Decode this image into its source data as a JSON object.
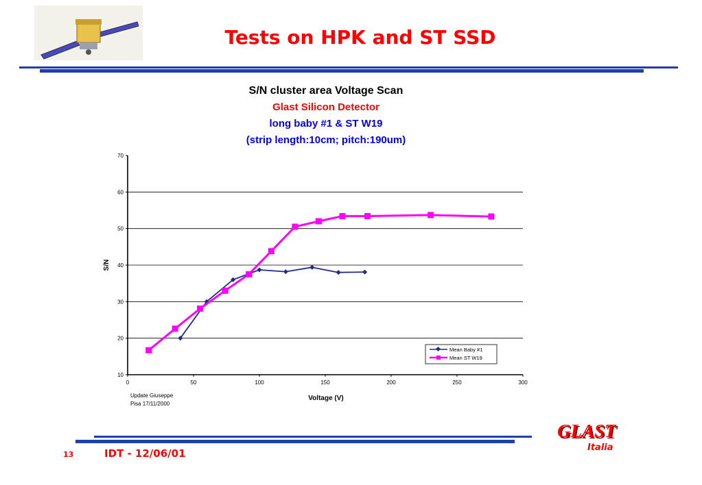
{
  "slide": {
    "title": "Tests on HPK and ST SSD",
    "page_number": "13",
    "footer": "IDT - 12/06/01",
    "logo_name": "GLAST",
    "logo_sub": "Italia"
  },
  "colors": {
    "title": "#ff0000",
    "rule": "#1f3fb0",
    "series_baby": "#1f2a8a",
    "series_st": "#ff00ff",
    "chart_title_red": "#ff0000",
    "chart_title_blue": "#0000ee"
  },
  "chart_data": {
    "type": "line",
    "title": "S/N cluster area Voltage Scan",
    "subtitle_lines": [
      "Glast Silicon Detector",
      "long baby #1  &  ST W19",
      "(strip length:10cm; pitch:190um)"
    ],
    "xlabel": "Voltage (V)",
    "ylabel": "S/N",
    "xlim": [
      0,
      300
    ],
    "ylim": [
      10,
      70
    ],
    "xticks": [
      0,
      50,
      100,
      150,
      200,
      250,
      300
    ],
    "yticks": [
      10,
      20,
      30,
      40,
      50,
      60,
      70
    ],
    "grid": "horizontal",
    "legend_position": "bottom-right",
    "note_lines": [
      "Update Giuseppe",
      "Pisa 17/11/2000"
    ],
    "series": [
      {
        "name": "Mean Baby #1",
        "marker": "diamond",
        "x": [
          40,
          60,
          80,
          100,
          120,
          140,
          160,
          180
        ],
        "y": [
          20,
          30,
          36,
          38.7,
          38.2,
          39.4,
          38,
          38.1
        ]
      },
      {
        "name": "Mean ST W19",
        "marker": "square",
        "x": [
          16,
          36,
          55,
          74,
          92,
          109,
          127,
          145,
          163,
          182,
          230,
          276
        ],
        "y": [
          16.7,
          22.6,
          28.1,
          33,
          37.5,
          43.8,
          50.5,
          52,
          53.4,
          53.4,
          53.7,
          53.3
        ]
      }
    ]
  }
}
